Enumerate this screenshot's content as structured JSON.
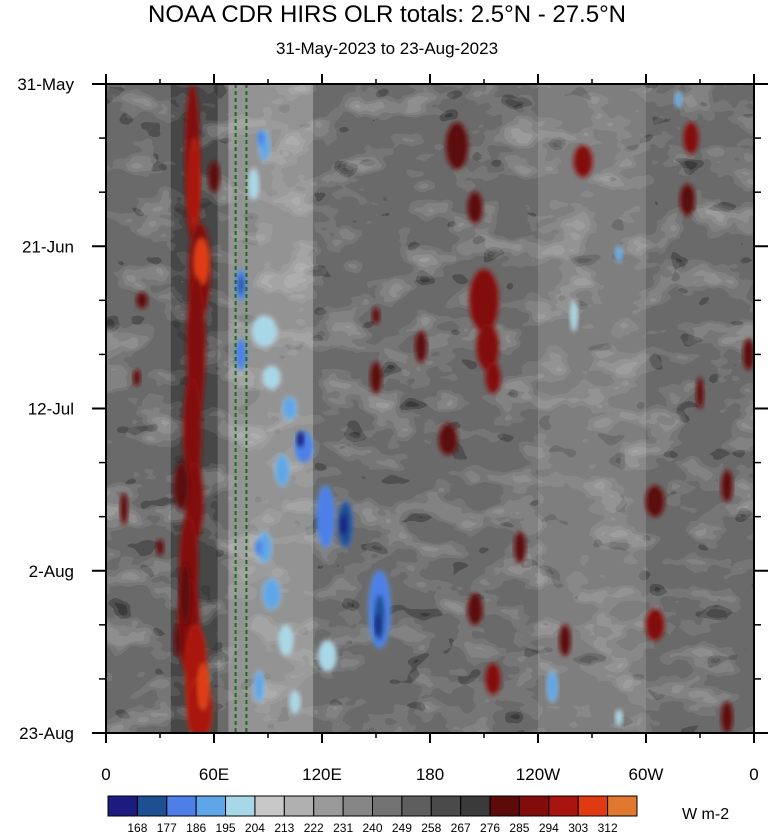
{
  "chart_data": {
    "type": "heatmap",
    "title": "NOAA CDR HIRS OLR totals: 2.5°N - 27.5°N",
    "subtitle": "31-May-2023 to 23-Aug-2023",
    "xlabel": "",
    "ylabel": "",
    "x_ticks": [
      "0",
      "60E",
      "120E",
      "180",
      "120W",
      "60W",
      "0"
    ],
    "x_tick_lon": [
      0,
      60,
      120,
      180,
      240,
      300,
      360
    ],
    "y_ticks": [
      "31-May",
      "21-Jun",
      "12-Jul",
      "2-Aug",
      "23-Aug"
    ],
    "y_tick_day": [
      0,
      21,
      42,
      63,
      84
    ],
    "xlim": [
      0,
      360
    ],
    "ylim_days": [
      0,
      84
    ],
    "reference_lines_lon": [
      72,
      78
    ],
    "colorbar": {
      "units": "W m-2",
      "levels": [
        "168",
        "177",
        "186",
        "195",
        "204",
        "213",
        "222",
        "231",
        "240",
        "249",
        "258",
        "267",
        "276",
        "285",
        "294",
        "303",
        "312"
      ],
      "colors": [
        "#1c1c80",
        "#1e4f92",
        "#4e7fe8",
        "#5ea6e8",
        "#a8d8e8",
        "#c8c8c8",
        "#b0b0b0",
        "#9a9a9a",
        "#868686",
        "#727272",
        "#5e5e5e",
        "#4a4a4a",
        "#3a3a3a",
        "#5c0a0a",
        "#820c0c",
        "#a81410",
        "#e03a12",
        "#e07830"
      ]
    },
    "features": [
      {
        "kind": "high",
        "lon_range": [
          40,
          60
        ],
        "day_range": [
          0,
          84
        ],
        "level": "294-303"
      },
      {
        "kind": "low",
        "lon_range": [
          75,
          110
        ],
        "day_range": [
          0,
          84
        ],
        "level": "186-204"
      },
      {
        "kind": "low",
        "lon_range": [
          110,
          170
        ],
        "day_range": [
          45,
          75
        ],
        "level": "168-195"
      },
      {
        "kind": "high",
        "lon_range": [
          195,
          225
        ],
        "day_range": [
          20,
          40
        ],
        "level": "285-294"
      }
    ]
  }
}
